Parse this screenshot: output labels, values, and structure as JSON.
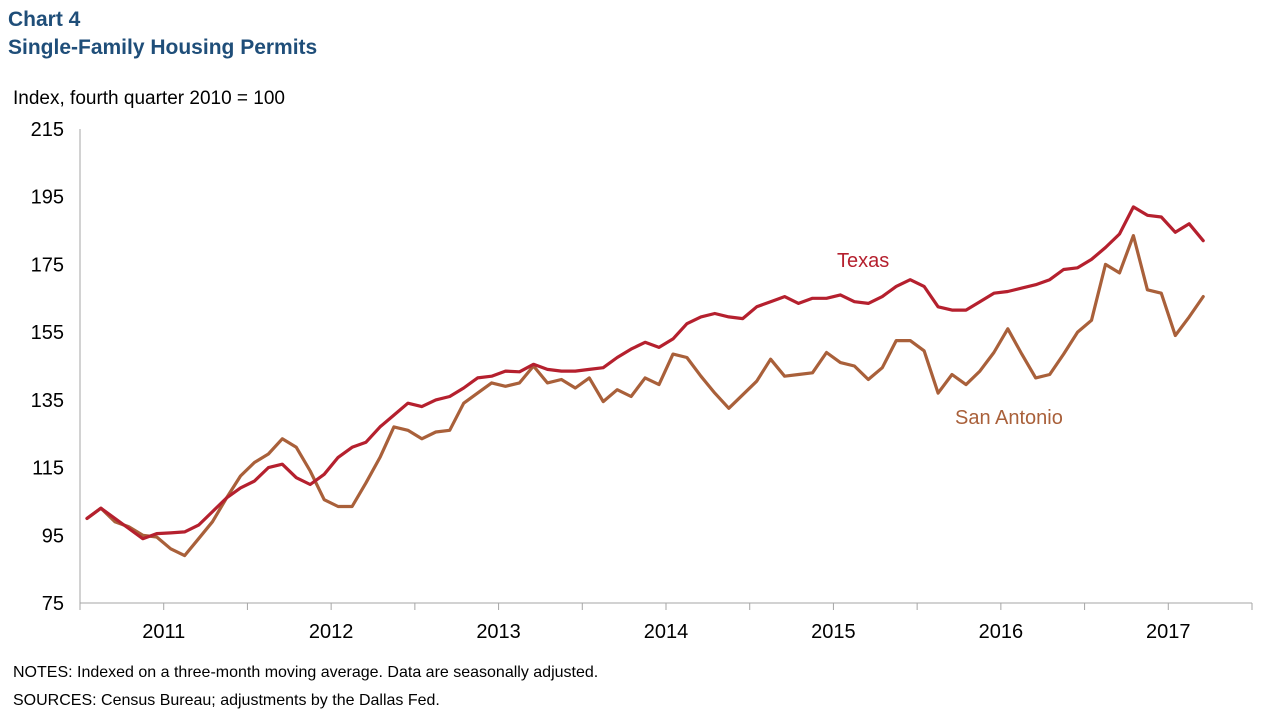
{
  "header": {
    "chart_number": "Chart 4",
    "title": "Single-Family Housing Permits"
  },
  "footer": {
    "notes": "NOTES: Indexed on a three-month moving average. Data are seasonally adjusted.",
    "sources": "SOURCES: Census Bureau; adjustments by the Dallas Fed."
  },
  "colors": {
    "texas": "#b5202e",
    "san_antonio": "#a9603a",
    "axis": "#a6a6a6",
    "title": "#1f4e79"
  },
  "chart_data": {
    "type": "line",
    "title": "Single-Family Housing Permits",
    "ylabel": "Index, fourth quarter 2010 = 100",
    "xlabel": "",
    "ylim": [
      75,
      215
    ],
    "yticks": [
      75,
      95,
      115,
      135,
      155,
      175,
      195,
      215
    ],
    "xlim": [
      "2011-01",
      "2018-01"
    ],
    "x_tick_labels": [
      "2011",
      "2012",
      "2013",
      "2014",
      "2015",
      "2016",
      "2017"
    ],
    "grid": false,
    "legend": "inline labels",
    "series": [
      {
        "name": "Texas",
        "start": "2011-01",
        "frequency": "monthly",
        "values": [
          100,
          103,
          100,
          97,
          94,
          95.5,
          95.7,
          96,
          98,
          102,
          106,
          109,
          111,
          115,
          116,
          112,
          110,
          113,
          118,
          121,
          122.5,
          127,
          130.5,
          134,
          133,
          135,
          136,
          138.5,
          141.5,
          142,
          143.5,
          143.3,
          145.5,
          144,
          143.5,
          143.5,
          144,
          144.5,
          147.5,
          150,
          152,
          150.5,
          153,
          157.5,
          159.5,
          160.5,
          159.5,
          159,
          162.5,
          164,
          165.5,
          163.5,
          165,
          165,
          166,
          164,
          163.5,
          165.5,
          168.5,
          170.5,
          168.5,
          162.5,
          161.5,
          161.5,
          164,
          166.5,
          167,
          168,
          169,
          170.5,
          173.5,
          174,
          176.5,
          180,
          184,
          192,
          189.5,
          189,
          184.5,
          187,
          182
        ]
      },
      {
        "name": "San Antonio",
        "start": "2011-01",
        "frequency": "monthly",
        "values": [
          100,
          103,
          99,
          97.5,
          95,
          94.5,
          91,
          89,
          94,
          99,
          106,
          112.5,
          116.5,
          119,
          123.5,
          121,
          114,
          105.5,
          103.5,
          103.5,
          110.5,
          118,
          127,
          126,
          123.5,
          125.5,
          126,
          134,
          137,
          140,
          139,
          140,
          145,
          140,
          141,
          138.5,
          141.5,
          134.5,
          138,
          136,
          141.5,
          139.5,
          148.5,
          147.5,
          142,
          137,
          132.5,
          136.5,
          140.5,
          147,
          142,
          142.5,
          143,
          149,
          146,
          145,
          141,
          144.5,
          152.5,
          152.5,
          149.5,
          137,
          142.5,
          139.5,
          143.5,
          149,
          156,
          148.5,
          141.5,
          142.5,
          148.5,
          155,
          158.5,
          175,
          172.5,
          183.5,
          167.5,
          166.5,
          154,
          159.5,
          165.5
        ]
      }
    ],
    "annotations": [
      "Texas",
      "San Antonio"
    ]
  }
}
